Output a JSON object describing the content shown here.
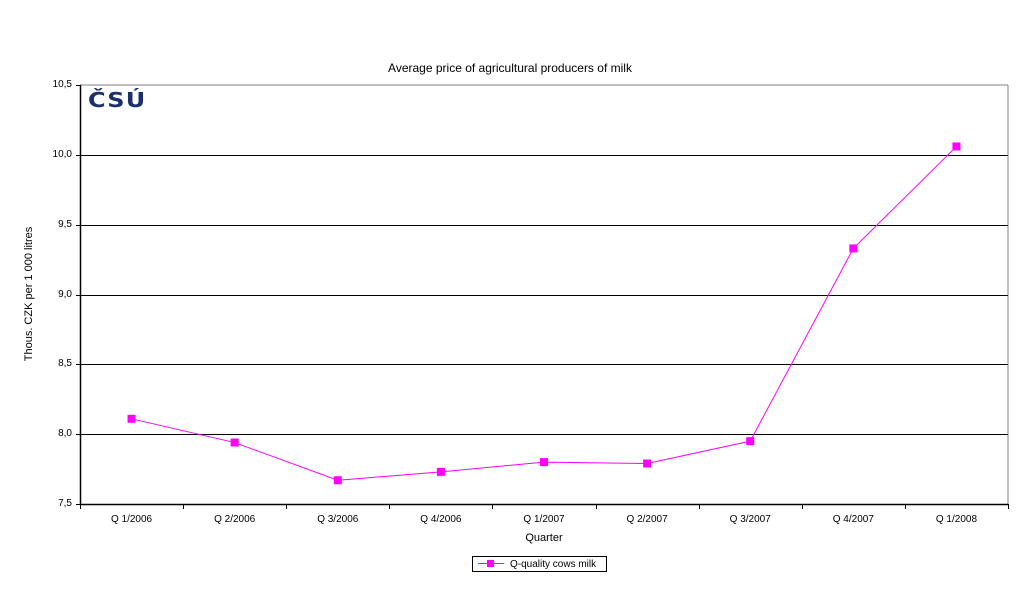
{
  "chart_data": {
    "type": "line",
    "title": "Average price of agricultural producers of milk",
    "xlabel": "Quarter",
    "ylabel": "Thous. CZK per 1 000 litres",
    "categories": [
      "Q 1/2006",
      "Q 2/2006",
      "Q 3/2006",
      "Q 4/2006",
      "Q 1/2007",
      "Q 2/2007",
      "Q 3/2007",
      "Q 4/2007",
      "Q 1/2008"
    ],
    "series": [
      {
        "name": "Q-quality cows milk",
        "color": "#ff00ff",
        "marker": "square",
        "values": [
          8.11,
          7.94,
          7.67,
          7.73,
          7.8,
          7.79,
          7.95,
          9.33,
          10.06
        ]
      }
    ],
    "ylim": [
      7.5,
      10.5
    ],
    "yticks": [
      "7,5",
      "8,0",
      "8,5",
      "9,0",
      "9,5",
      "10,0",
      "10,5"
    ],
    "grid": true,
    "legend_position": "bottom"
  },
  "logo": {
    "text": "ČSÚ",
    "color": "#1a2f6b"
  }
}
